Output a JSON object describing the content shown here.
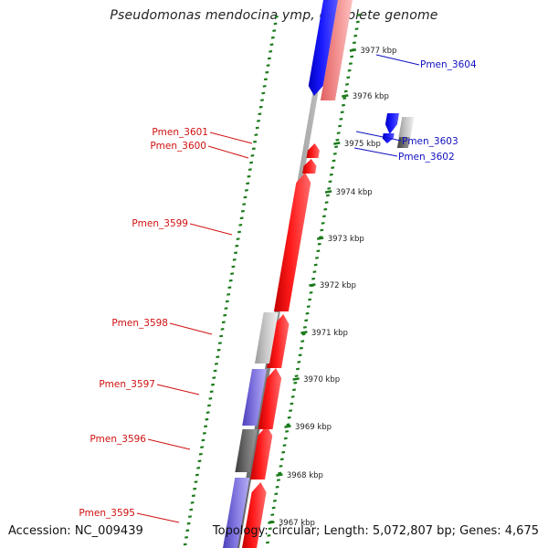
{
  "title": "Pseudomonas mendocina ymp, complete genome",
  "footer": {
    "accession": "Accession: NC_009439",
    "summary": "Topology: circular; Length: 5,072,807 bp; Genes: 4,675"
  },
  "colors": {
    "forward_cds": "#ff1a1a",
    "forward_cds_light": "#f08a8a",
    "reverse_cds": "#1a1aff",
    "reverse_cds_light": "#7f74df",
    "pseudo_dark": "#6a6a6a",
    "pseudo_light": "#c6c6c6",
    "backbone": "#8c8c8c",
    "ticks": "#1a7a1a",
    "label_forward": "#d01010",
    "label_reverse": "#1010c0"
  },
  "scale_ticks": [
    "3977 kbp",
    "3976 kbp",
    "3975 kbp",
    "3974 kbp",
    "3973 kbp",
    "3972 kbp",
    "3971 kbp",
    "3970 kbp",
    "3969 kbp",
    "3968 kbp",
    "3967 kbp"
  ],
  "gene_labels": [
    {
      "text": "Pmen_3604",
      "strand": "reverse"
    },
    {
      "text": "Pmen_3603",
      "strand": "reverse"
    },
    {
      "text": "Pmen_3602",
      "strand": "reverse"
    },
    {
      "text": "Pmen_3601",
      "strand": "forward"
    },
    {
      "text": "Pmen_3600",
      "strand": "forward"
    },
    {
      "text": "Pmen_3599",
      "strand": "forward"
    },
    {
      "text": "Pmen_3598",
      "strand": "forward"
    },
    {
      "text": "Pmen_3597",
      "strand": "forward"
    },
    {
      "text": "Pmen_3596",
      "strand": "forward"
    },
    {
      "text": "Pmen_3595",
      "strand": "forward"
    }
  ]
}
